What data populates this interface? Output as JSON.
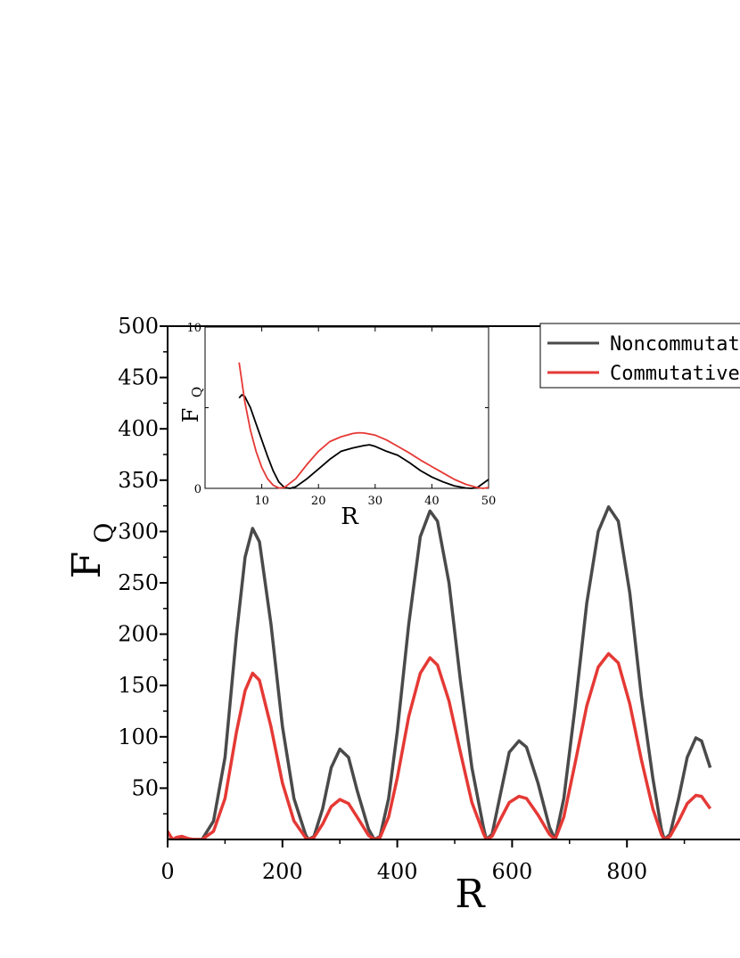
{
  "chart_data": [
    {
      "type": "line",
      "xlabel": "R",
      "ylabel": "F",
      "ylabel_sub": "Q",
      "xlim": [
        0,
        1000
      ],
      "ylim": [
        0,
        500
      ],
      "x_ticks": [
        0,
        200,
        400,
        600,
        800
      ],
      "y_ticks": [
        50,
        100,
        150,
        200,
        250,
        300,
        350,
        400,
        450,
        500
      ],
      "legend_position": "top-right",
      "series": [
        {
          "name": "Noncommutative",
          "color": "#4a4a4a",
          "points": [
            [
              0,
              0
            ],
            [
              60,
              0
            ],
            [
              80,
              18
            ],
            [
              100,
              80
            ],
            [
              120,
              200
            ],
            [
              135,
              275
            ],
            [
              148,
              303
            ],
            [
              160,
              290
            ],
            [
              180,
              210
            ],
            [
              200,
              110
            ],
            [
              220,
              40
            ],
            [
              240,
              5
            ],
            [
              245,
              0
            ],
            [
              255,
              3
            ],
            [
              270,
              30
            ],
            [
              285,
              70
            ],
            [
              300,
              88
            ],
            [
              315,
              80
            ],
            [
              330,
              48
            ],
            [
              350,
              10
            ],
            [
              360,
              0
            ],
            [
              370,
              3
            ],
            [
              385,
              40
            ],
            [
              400,
              105
            ],
            [
              420,
              210
            ],
            [
              440,
              295
            ],
            [
              457,
              320
            ],
            [
              470,
              310
            ],
            [
              490,
              250
            ],
            [
              510,
              155
            ],
            [
              530,
              70
            ],
            [
              550,
              12
            ],
            [
              555,
              0
            ],
            [
              565,
              5
            ],
            [
              580,
              45
            ],
            [
              595,
              85
            ],
            [
              612,
              96
            ],
            [
              625,
              90
            ],
            [
              645,
              55
            ],
            [
              665,
              12
            ],
            [
              675,
              0
            ],
            [
              690,
              40
            ],
            [
              710,
              130
            ],
            [
              730,
              230
            ],
            [
              750,
              300
            ],
            [
              768,
              324
            ],
            [
              785,
              310
            ],
            [
              805,
              240
            ],
            [
              825,
              140
            ],
            [
              845,
              60
            ],
            [
              860,
              10
            ],
            [
              865,
              0
            ],
            [
              875,
              5
            ],
            [
              890,
              40
            ],
            [
              905,
              80
            ],
            [
              920,
              99
            ],
            [
              930,
              96
            ],
            [
              945,
              70
            ]
          ]
        },
        {
          "name": "Commutative",
          "color": "#e53935",
          "points": [
            [
              0,
              8
            ],
            [
              5,
              3
            ],
            [
              10,
              0
            ],
            [
              15,
              2
            ],
            [
              25,
              3
            ],
            [
              35,
              1
            ],
            [
              45,
              0
            ],
            [
              60,
              0
            ],
            [
              80,
              8
            ],
            [
              100,
              40
            ],
            [
              120,
              105
            ],
            [
              135,
              145
            ],
            [
              148,
              162
            ],
            [
              160,
              155
            ],
            [
              180,
              110
            ],
            [
              200,
              55
            ],
            [
              220,
              18
            ],
            [
              240,
              2
            ],
            [
              245,
              0
            ],
            [
              255,
              2
            ],
            [
              270,
              15
            ],
            [
              285,
              32
            ],
            [
              300,
              39
            ],
            [
              315,
              35
            ],
            [
              330,
              22
            ],
            [
              350,
              4
            ],
            [
              360,
              0
            ],
            [
              370,
              2
            ],
            [
              385,
              22
            ],
            [
              400,
              60
            ],
            [
              420,
              120
            ],
            [
              440,
              162
            ],
            [
              457,
              177
            ],
            [
              470,
              170
            ],
            [
              490,
              135
            ],
            [
              510,
              85
            ],
            [
              530,
              36
            ],
            [
              550,
              6
            ],
            [
              555,
              0
            ],
            [
              565,
              3
            ],
            [
              580,
              20
            ],
            [
              595,
              36
            ],
            [
              612,
              42
            ],
            [
              625,
              40
            ],
            [
              645,
              24
            ],
            [
              665,
              5
            ],
            [
              675,
              0
            ],
            [
              690,
              22
            ],
            [
              710,
              75
            ],
            [
              730,
              130
            ],
            [
              750,
              168
            ],
            [
              768,
              181
            ],
            [
              785,
              172
            ],
            [
              805,
              132
            ],
            [
              825,
              78
            ],
            [
              845,
              30
            ],
            [
              860,
              5
            ],
            [
              865,
              0
            ],
            [
              875,
              3
            ],
            [
              890,
              18
            ],
            [
              905,
              35
            ],
            [
              920,
              43
            ],
            [
              930,
              42
            ],
            [
              945,
              30
            ]
          ]
        }
      ]
    },
    {
      "type": "line",
      "xlabel": "R",
      "ylabel": "F",
      "ylabel_sub": "Q",
      "xlim": [
        0,
        50
      ],
      "ylim": [
        0,
        10
      ],
      "x_ticks": [
        10,
        20,
        30,
        40,
        50
      ],
      "y_ticks": [
        0,
        10
      ],
      "series": [
        {
          "color": "#000000",
          "points": [
            [
              6,
              5.6
            ],
            [
              6.5,
              5.8
            ],
            [
              7,
              5.7
            ],
            [
              8,
              5
            ],
            [
              9,
              4
            ],
            [
              10,
              3
            ],
            [
              11,
              2
            ],
            [
              12,
              1.1
            ],
            [
              13,
              0.4
            ],
            [
              14,
              0.05
            ],
            [
              15,
              0
            ],
            [
              16,
              0.1
            ],
            [
              18,
              0.6
            ],
            [
              20,
              1.2
            ],
            [
              22,
              1.8
            ],
            [
              24,
              2.3
            ],
            [
              26,
              2.5
            ],
            [
              28,
              2.65
            ],
            [
              29,
              2.7
            ],
            [
              30,
              2.6
            ],
            [
              32,
              2.3
            ],
            [
              34,
              2.05
            ],
            [
              36,
              1.6
            ],
            [
              38,
              1.1
            ],
            [
              40,
              0.7
            ],
            [
              42,
              0.4
            ],
            [
              44,
              0.15
            ],
            [
              46,
              0.02
            ],
            [
              47,
              0
            ],
            [
              48,
              0.05
            ],
            [
              50,
              0.55
            ]
          ]
        },
        {
          "color": "#e53935",
          "points": [
            [
              6,
              7.8
            ],
            [
              7,
              5.4
            ],
            [
              8,
              3.6
            ],
            [
              9,
              2.3
            ],
            [
              10,
              1.3
            ],
            [
              11,
              0.6
            ],
            [
              12,
              0.2
            ],
            [
              13,
              0.02
            ],
            [
              14,
              0.05
            ],
            [
              16,
              0.6
            ],
            [
              18,
              1.5
            ],
            [
              20,
              2.3
            ],
            [
              22,
              2.9
            ],
            [
              24,
              3.2
            ],
            [
              26,
              3.4
            ],
            [
              27,
              3.45
            ],
            [
              28,
              3.43
            ],
            [
              30,
              3.3
            ],
            [
              32,
              3
            ],
            [
              34,
              2.6
            ],
            [
              36,
              2.2
            ],
            [
              38,
              1.75
            ],
            [
              40,
              1.35
            ],
            [
              42,
              0.95
            ],
            [
              44,
              0.55
            ],
            [
              46,
              0.25
            ],
            [
              48,
              0.05
            ],
            [
              49,
              0
            ],
            [
              50,
              0.05
            ]
          ]
        }
      ]
    }
  ]
}
